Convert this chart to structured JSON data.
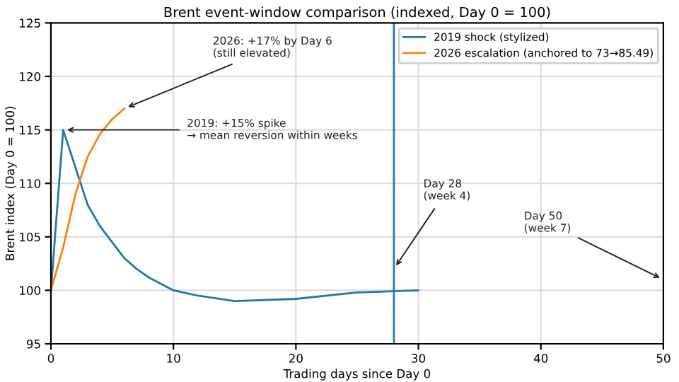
{
  "chart_data": {
    "type": "line",
    "title": "Brent event-window comparison (indexed, Day 0 = 100)",
    "xlabel": "Trading days since Day 0",
    "ylabel": "Brent index (Day 0 = 100)",
    "series": [
      {
        "name": "2019 shock (stylized)",
        "color": "#1f77b4",
        "x": [
          0,
          1,
          2,
          3,
          4,
          5,
          6,
          7,
          8,
          10,
          12,
          15,
          20,
          25,
          30
        ],
        "values": [
          100,
          115,
          111.5,
          108,
          106,
          104.5,
          103,
          102,
          101.2,
          100,
          99.5,
          99,
          99.2,
          99.8,
          100
        ]
      },
      {
        "name": "2026 escalation (anchored to 73→85.49)",
        "color": "#ff7f0e",
        "x": [
          0,
          1,
          2,
          3,
          4,
          5,
          6
        ],
        "values": [
          100,
          104,
          109,
          112.5,
          114.6,
          116,
          117
        ]
      }
    ],
    "xlim": [
      0,
      50
    ],
    "xticks": [
      0,
      10,
      20,
      30,
      40,
      50
    ],
    "ylim": [
      95,
      125
    ],
    "yticks": [
      95,
      100,
      105,
      110,
      115,
      120,
      125
    ],
    "ref_lines": [
      {
        "axis": "x",
        "value": 28,
        "color": "#1f77b4"
      }
    ],
    "annotations": [
      {
        "text": "2026: +17% by Day 6\n(still elevated)",
        "x": 6,
        "y": 117
      },
      {
        "text": "2019: +15% spike\n→ mean reversion within weeks",
        "x": 1,
        "y": 115
      },
      {
        "text": "Day 28\n(week 4)",
        "x": 28,
        "y": 102
      },
      "Day 50\n(week 7)"
    ],
    "grid": true,
    "legend": "top right",
    "marker": "none",
    "line_style": "solid"
  }
}
